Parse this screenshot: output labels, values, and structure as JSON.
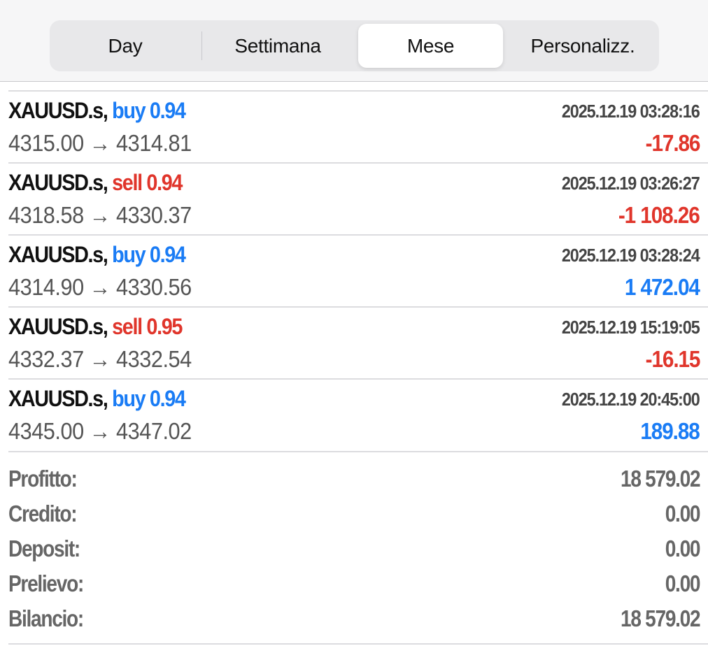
{
  "tabs": [
    {
      "label": "Day"
    },
    {
      "label": "Settimana"
    },
    {
      "label": "Mese",
      "selected": true
    },
    {
      "label": "Personalizz."
    }
  ],
  "colors": {
    "buy": "#1a7cf5",
    "sell": "#e0352b",
    "negative": "#e0352b",
    "positive": "#1a7cf5"
  },
  "deals": [
    {
      "symbol": "XAUUSD.s,",
      "type": "buy 0.94",
      "side": "buy",
      "time": "2025.12.19 03:28:16",
      "open": "4315.00",
      "arrow": "→",
      "close": "4314.81",
      "profit": "-17.86",
      "sign": "negative"
    },
    {
      "symbol": "XAUUSD.s,",
      "type": "sell 0.94",
      "side": "sell",
      "time": "2025.12.19 03:26:27",
      "open": "4318.58",
      "arrow": "→",
      "close": "4330.37",
      "profit": "-1 108.26",
      "sign": "negative"
    },
    {
      "symbol": "XAUUSD.s,",
      "type": "buy 0.94",
      "side": "buy",
      "time": "2025.12.19 03:28:24",
      "open": "4314.90",
      "arrow": "→",
      "close": "4330.56",
      "profit": "1 472.04",
      "sign": "positive"
    },
    {
      "symbol": "XAUUSD.s,",
      "type": "sell 0.95",
      "side": "sell",
      "time": "2025.12.19 15:19:05",
      "open": "4332.37",
      "arrow": "→",
      "close": "4332.54",
      "profit": "-16.15",
      "sign": "negative"
    },
    {
      "symbol": "XAUUSD.s,",
      "type": "buy 0.94",
      "side": "buy",
      "time": "2025.12.19 20:45:00",
      "open": "4345.00",
      "arrow": "→",
      "close": "4347.02",
      "profit": "189.88",
      "sign": "positive"
    }
  ],
  "summary": [
    {
      "label": "Profitto:",
      "value": "18 579.02"
    },
    {
      "label": "Credito:",
      "value": "0.00"
    },
    {
      "label": "Deposit:",
      "value": "0.00"
    },
    {
      "label": "Prelievo:",
      "value": "0.00"
    },
    {
      "label": "Bilancio:",
      "value": "18 579.02"
    }
  ]
}
